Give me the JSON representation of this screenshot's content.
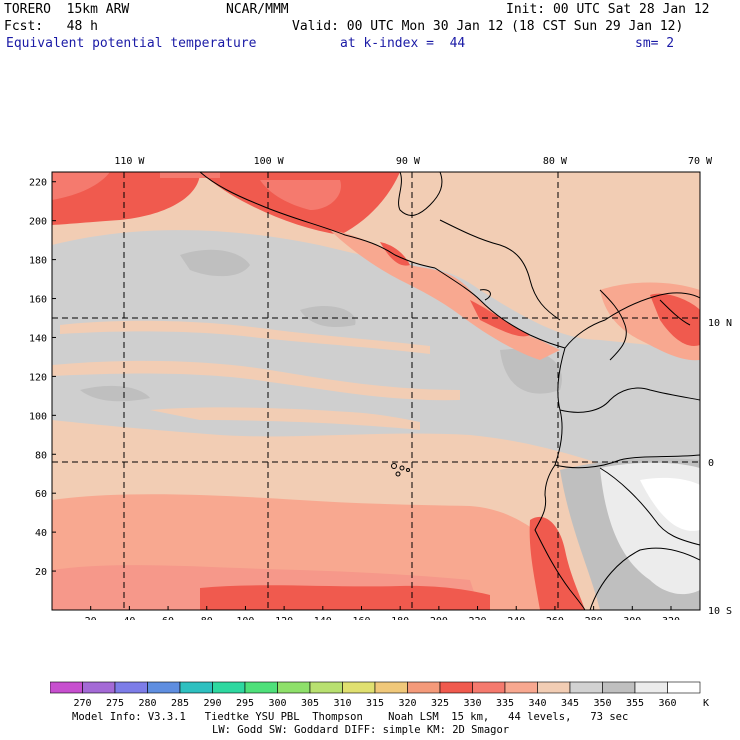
{
  "header": {
    "model": "TORERO  15km ARW",
    "org": "NCAR/MMM",
    "init": "Init: 00 UTC Sat 28 Jan 12",
    "fcst": "Fcst:   48 h",
    "valid": "Valid: 00 UTC Mon 30 Jan 12 (18 CST Sun 29 Jan 12)",
    "field": "Equivalent potential temperature",
    "level": "at k-index =  44",
    "smooth": "sm= 2"
  },
  "map": {
    "lon_labels": [
      {
        "text": "110 W",
        "grid_x": 40
      },
      {
        "text": "100 W",
        "grid_x": 112
      },
      {
        "text": "90 W",
        "grid_x": 184
      },
      {
        "text": "80 W",
        "grid_x": 260
      },
      {
        "text": "70 W",
        "grid_x": 335
      }
    ],
    "lat_labels": [
      {
        "text": "10 N",
        "grid_y": 148
      },
      {
        "text": "0",
        "grid_y": 76
      },
      {
        "text": "10 S",
        "grid_y": 0
      }
    ],
    "x_ticks": [
      20,
      40,
      60,
      80,
      100,
      120,
      140,
      160,
      180,
      200,
      220,
      240,
      260,
      280,
      300,
      320
    ],
    "y_ticks": [
      20,
      40,
      60,
      80,
      100,
      120,
      140,
      160,
      180,
      200,
      220
    ],
    "x_range": [
      0,
      335
    ],
    "y_range": [
      0,
      225
    ]
  },
  "colorbar": {
    "labels": [
      "270",
      "275",
      "280",
      "285",
      "290",
      "295",
      "300",
      "305",
      "310",
      "315",
      "320",
      "325",
      "330",
      "335",
      "340",
      "345",
      "350",
      "355",
      "360"
    ],
    "unit": "K",
    "colors": [
      "#c74fcf",
      "#a46ad6",
      "#7d7de8",
      "#5f8ee0",
      "#2ec0c0",
      "#2ed8a0",
      "#4ee07a",
      "#8ee06a",
      "#b8e070",
      "#e0e070",
      "#f0c87a",
      "#f49a7a",
      "#f05a4e",
      "#f57a6e",
      "#f8a890",
      "#f2cdb4",
      "#d2d2d2",
      "#bfbfbf",
      "#ececec",
      "#ffffff"
    ]
  },
  "footer": {
    "line1": "Model Info: V3.3.1   Tiedtke YSU PBL  Thompson    Noah LSM  15 km,   44 levels,   73 sec",
    "line2": "LW: Godd SW: Goddard DIFF: simple KM: 2D Smagor"
  }
}
